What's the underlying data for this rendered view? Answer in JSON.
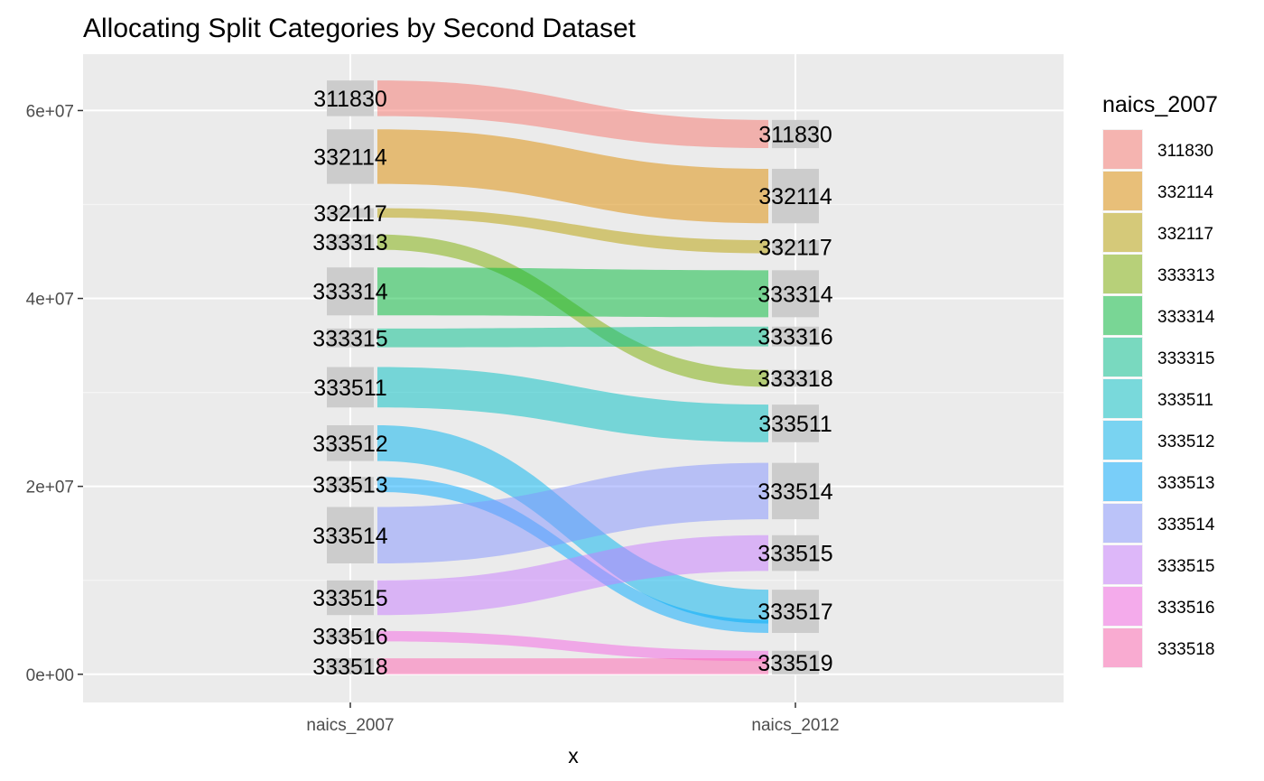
{
  "chart_data": {
    "type": "alluvial",
    "title": "Allocating Split Categories by Second Dataset",
    "xlabel": "x",
    "ylabel": "",
    "ylim": [
      -3000000,
      66000000
    ],
    "y_ticks": [
      {
        "value": 0,
        "label": "0e+00"
      },
      {
        "value": 20000000,
        "label": "2e+07"
      },
      {
        "value": 40000000,
        "label": "4e+07"
      },
      {
        "value": 60000000,
        "label": "6e+07"
      }
    ],
    "axes": [
      "naics_2007",
      "naics_2012"
    ],
    "legend": {
      "title": "naics_2007",
      "position": "right",
      "items": [
        {
          "label": "311830",
          "color": "#f8766d"
        },
        {
          "label": "332114",
          "color": "#de8c00"
        },
        {
          "label": "332117",
          "color": "#b79f00"
        },
        {
          "label": "333313",
          "color": "#7cae00"
        },
        {
          "label": "333314",
          "color": "#00ba38"
        },
        {
          "label": "333315",
          "color": "#00c08b"
        },
        {
          "label": "333511",
          "color": "#00bfc4"
        },
        {
          "label": "333512",
          "color": "#00b4f0"
        },
        {
          "label": "333513",
          "color": "#00a9ff"
        },
        {
          "label": "333514",
          "color": "#8494ff"
        },
        {
          "label": "333515",
          "color": "#c77cff"
        },
        {
          "label": "333516",
          "color": "#f564e3"
        },
        {
          "label": "333518",
          "color": "#ff64b0"
        }
      ]
    },
    "strata_2007": [
      {
        "label": "311830",
        "ymin": 59400000,
        "ymax": 63200000
      },
      {
        "label": "332114",
        "ymin": 52200000,
        "ymax": 58000000
      },
      {
        "label": "332117",
        "ymin": 48600000,
        "ymax": 49600000
      },
      {
        "label": "333313",
        "ymin": 45200000,
        "ymax": 46800000
      },
      {
        "label": "333314",
        "ymin": 38200000,
        "ymax": 43300000
      },
      {
        "label": "333315",
        "ymin": 34800000,
        "ymax": 36800000
      },
      {
        "label": "333511",
        "ymin": 28400000,
        "ymax": 32700000
      },
      {
        "label": "333512",
        "ymin": 22700000,
        "ymax": 26500000
      },
      {
        "label": "333513",
        "ymin": 19400000,
        "ymax": 21000000
      },
      {
        "label": "333514",
        "ymin": 11800000,
        "ymax": 17800000
      },
      {
        "label": "333515",
        "ymin": 6300000,
        "ymax": 10000000
      },
      {
        "label": "333516",
        "ymin": 3500000,
        "ymax": 4600000
      },
      {
        "label": "333518",
        "ymin": 0,
        "ymax": 1700000
      }
    ],
    "strata_2012": [
      {
        "label": "311830",
        "ymin": 56000000,
        "ymax": 59000000
      },
      {
        "label": "332114",
        "ymin": 48000000,
        "ymax": 53800000
      },
      {
        "label": "332117",
        "ymin": 44800000,
        "ymax": 46200000
      },
      {
        "label": "333314",
        "ymin": 38000000,
        "ymax": 43000000
      },
      {
        "label": "333316",
        "ymin": 34900000,
        "ymax": 37000000
      },
      {
        "label": "333318",
        "ymin": 30600000,
        "ymax": 32400000
      },
      {
        "label": "333511",
        "ymin": 24700000,
        "ymax": 28700000
      },
      {
        "label": "333514",
        "ymin": 16500000,
        "ymax": 22500000
      },
      {
        "label": "333515",
        "ymin": 11000000,
        "ymax": 14800000
      },
      {
        "label": "333517",
        "ymin": 4400000,
        "ymax": 9000000
      },
      {
        "label": "333519",
        "ymin": 0,
        "ymax": 2500000
      }
    ],
    "flows": [
      {
        "from": "311830",
        "to": "311830",
        "from_range": [
          59400000,
          63200000
        ],
        "to_range": [
          56000000,
          59000000
        ]
      },
      {
        "from": "332114",
        "to": "332114",
        "from_range": [
          52200000,
          58000000
        ],
        "to_range": [
          48000000,
          53800000
        ]
      },
      {
        "from": "332117",
        "to": "332117",
        "from_range": [
          48600000,
          49600000
        ],
        "to_range": [
          44800000,
          46200000
        ]
      },
      {
        "from": "333313",
        "to": "333318",
        "from_range": [
          45200000,
          46800000
        ],
        "to_range": [
          30600000,
          32400000
        ]
      },
      {
        "from": "333314",
        "to": "333314",
        "from_range": [
          38200000,
          43300000
        ],
        "to_range": [
          38000000,
          43000000
        ]
      },
      {
        "from": "333315",
        "to": "333316",
        "from_range": [
          34800000,
          36800000
        ],
        "to_range": [
          34900000,
          37000000
        ]
      },
      {
        "from": "333511",
        "to": "333511",
        "from_range": [
          28400000,
          32700000
        ],
        "to_range": [
          24700000,
          28700000
        ]
      },
      {
        "from": "333512",
        "to": "333517",
        "from_range": [
          22700000,
          26500000
        ],
        "to_range": [
          5400000,
          9000000
        ]
      },
      {
        "from": "333513",
        "to": "333517",
        "from_range": [
          19400000,
          21000000
        ],
        "to_range": [
          4400000,
          5800000
        ]
      },
      {
        "from": "333514",
        "to": "333514",
        "from_range": [
          11800000,
          17800000
        ],
        "to_range": [
          16500000,
          22500000
        ]
      },
      {
        "from": "333515",
        "to": "333515",
        "from_range": [
          6300000,
          10000000
        ],
        "to_range": [
          11000000,
          14800000
        ]
      },
      {
        "from": "333516",
        "to": "333519",
        "from_range": [
          3500000,
          4600000
        ],
        "to_range": [
          1400000,
          2500000
        ]
      },
      {
        "from": "333518",
        "to": "333519",
        "from_range": [
          0,
          1700000
        ],
        "to_range": [
          0,
          1700000
        ]
      }
    ]
  }
}
